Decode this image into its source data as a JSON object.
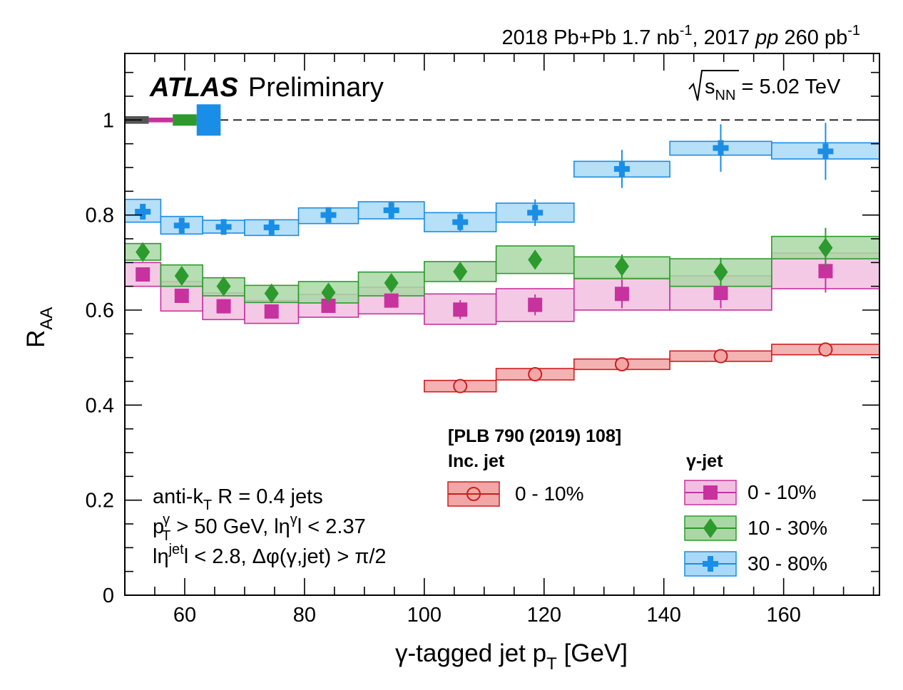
{
  "header": {
    "lumi_prefix": "2018 Pb+Pb 1.7 nb",
    "lumi_sup1": "-1",
    "lumi_mid": ", 2017 ",
    "lumi_pp": "pp",
    "lumi_mid2": " 260 pb",
    "lumi_sup2": "-1"
  },
  "atlas": {
    "brand": "ATLAS",
    "status": "Preliminary"
  },
  "energy": {
    "s": "s",
    "sub": "NN",
    "value": " = 5.02 TeV"
  },
  "selection": {
    "line1": {
      "a": "anti-k",
      "sub": "T",
      "b": " R = 0.4 jets"
    },
    "line2": {
      "a": "p",
      "sup": "γ",
      "sub": "T",
      "b": " > 50 GeV, lη",
      "sup2": "γ",
      "c": "l < 2.37"
    },
    "line3": {
      "a": "lη",
      "sup": "jet",
      "b": "l < 2.8, Δφ(γ,jet) > π/2"
    }
  },
  "legend": {
    "reference": "[PLB 790 (2019) 108]",
    "inc_heading": "Inc. jet",
    "gamma_heading": "γ-jet",
    "inc_label": "0 - 10%",
    "c0_label": "0 - 10%",
    "c1_label": "10 - 30%",
    "c2_label": "30 - 80%"
  },
  "chart_data": {
    "type": "scatter",
    "xlabel": "γ-tagged jet p",
    "xlabel_sub": "T",
    "xlabel_unit": " [GeV]",
    "ylabel": "R",
    "ylabel_sub": "AA",
    "xlim": [
      50,
      176
    ],
    "ylim": [
      0,
      1.14
    ],
    "xticks": [
      "60",
      "80",
      "100",
      "120",
      "140",
      "160"
    ],
    "yticks": [
      "0",
      "0.2",
      "0.4",
      "0.6",
      "0.8",
      "1"
    ],
    "reference_line": 1.0,
    "colors": {
      "incl": "#cc1f1f",
      "incl_fill": "#f2a6a6",
      "c0": "#c8329e",
      "c0_fill": "#f2bfe2",
      "c1": "#2d9a2d",
      "c1_fill": "#a9d8a5",
      "c2": "#1a8ee6",
      "c2_fill": "#a9d9f7"
    },
    "norm_boxes": [
      {
        "series": "incl",
        "x0": 50,
        "x1": 54,
        "lo": 0.992,
        "hi": 1.008
      },
      {
        "series": "c0",
        "x0": 54,
        "x1": 58,
        "lo": 0.995,
        "hi": 1.005
      },
      {
        "series": "c1",
        "x0": 58,
        "x1": 62,
        "lo": 0.988,
        "hi": 1.012
      },
      {
        "series": "c2",
        "x0": 62,
        "x1": 66,
        "lo": 0.967,
        "hi": 1.033
      }
    ],
    "series": [
      {
        "key": "c0",
        "name": "γ-jet 0 - 10%",
        "marker": "square",
        "points": [
          {
            "x": 53,
            "y": 0.675,
            "xlo": 50,
            "xhi": 56,
            "slo": 0.65,
            "shi": 0.7,
            "elo": 0.015,
            "ehi": 0.015
          },
          {
            "x": 59.5,
            "y": 0.63,
            "xlo": 56,
            "xhi": 63,
            "slo": 0.598,
            "shi": 0.66,
            "elo": 0.015,
            "ehi": 0.015
          },
          {
            "x": 66.5,
            "y": 0.608,
            "xlo": 63,
            "xhi": 70,
            "slo": 0.58,
            "shi": 0.636,
            "elo": 0.015,
            "ehi": 0.015
          },
          {
            "x": 74.5,
            "y": 0.597,
            "xlo": 70,
            "xhi": 79,
            "slo": 0.572,
            "shi": 0.62,
            "elo": 0.015,
            "ehi": 0.015
          },
          {
            "x": 84,
            "y": 0.609,
            "xlo": 79,
            "xhi": 89,
            "slo": 0.585,
            "shi": 0.633,
            "elo": 0.015,
            "ehi": 0.015
          },
          {
            "x": 94.5,
            "y": 0.62,
            "xlo": 89,
            "xhi": 100,
            "slo": 0.592,
            "shi": 0.648,
            "elo": 0.015,
            "ehi": 0.015
          },
          {
            "x": 106,
            "y": 0.601,
            "xlo": 100,
            "xhi": 112,
            "slo": 0.57,
            "shi": 0.634,
            "elo": 0.02,
            "ehi": 0.02
          },
          {
            "x": 118.5,
            "y": 0.611,
            "xlo": 112,
            "xhi": 125,
            "slo": 0.576,
            "shi": 0.645,
            "elo": 0.022,
            "ehi": 0.022
          },
          {
            "x": 133,
            "y": 0.634,
            "xlo": 125,
            "xhi": 141,
            "slo": 0.6,
            "shi": 0.668,
            "elo": 0.03,
            "ehi": 0.03
          },
          {
            "x": 149.5,
            "y": 0.636,
            "xlo": 141,
            "xhi": 158,
            "slo": 0.6,
            "shi": 0.672,
            "elo": 0.032,
            "ehi": 0.032
          },
          {
            "x": 167,
            "y": 0.682,
            "xlo": 158,
            "xhi": 176,
            "slo": 0.645,
            "shi": 0.72,
            "elo": 0.045,
            "ehi": 0.045
          }
        ]
      },
      {
        "key": "c1",
        "name": "γ-jet 10 - 30%",
        "marker": "diamond",
        "points": [
          {
            "x": 53,
            "y": 0.722,
            "xlo": 50,
            "xhi": 56,
            "slo": 0.705,
            "shi": 0.74,
            "elo": 0.015,
            "ehi": 0.015
          },
          {
            "x": 59.5,
            "y": 0.672,
            "xlo": 56,
            "xhi": 63,
            "slo": 0.65,
            "shi": 0.695,
            "elo": 0.015,
            "ehi": 0.015
          },
          {
            "x": 66.5,
            "y": 0.65,
            "xlo": 63,
            "xhi": 70,
            "slo": 0.63,
            "shi": 0.668,
            "elo": 0.015,
            "ehi": 0.015
          },
          {
            "x": 74.5,
            "y": 0.635,
            "xlo": 70,
            "xhi": 79,
            "slo": 0.616,
            "shi": 0.652,
            "elo": 0.015,
            "ehi": 0.015
          },
          {
            "x": 84,
            "y": 0.637,
            "xlo": 79,
            "xhi": 89,
            "slo": 0.615,
            "shi": 0.66,
            "elo": 0.015,
            "ehi": 0.015
          },
          {
            "x": 94.5,
            "y": 0.657,
            "xlo": 89,
            "xhi": 100,
            "slo": 0.63,
            "shi": 0.68,
            "elo": 0.015,
            "ehi": 0.015
          },
          {
            "x": 106,
            "y": 0.681,
            "xlo": 100,
            "xhi": 112,
            "slo": 0.66,
            "shi": 0.702,
            "elo": 0.015,
            "ehi": 0.015
          },
          {
            "x": 118.5,
            "y": 0.706,
            "xlo": 112,
            "xhi": 125,
            "slo": 0.677,
            "shi": 0.735,
            "elo": 0.02,
            "ehi": 0.02
          },
          {
            "x": 133,
            "y": 0.692,
            "xlo": 125,
            "xhi": 141,
            "slo": 0.666,
            "shi": 0.712,
            "elo": 0.025,
            "ehi": 0.025
          },
          {
            "x": 149.5,
            "y": 0.68,
            "xlo": 141,
            "xhi": 158,
            "slo": 0.65,
            "shi": 0.708,
            "elo": 0.03,
            "ehi": 0.03
          },
          {
            "x": 167,
            "y": 0.731,
            "xlo": 158,
            "xhi": 176,
            "slo": 0.708,
            "shi": 0.755,
            "elo": 0.042,
            "ehi": 0.042
          }
        ]
      },
      {
        "key": "c2",
        "name": "γ-jet 30 - 80%",
        "marker": "cross",
        "points": [
          {
            "x": 53,
            "y": 0.807,
            "xlo": 50,
            "xhi": 56,
            "slo": 0.785,
            "shi": 0.833,
            "elo": 0.015,
            "ehi": 0.015
          },
          {
            "x": 59.5,
            "y": 0.778,
            "xlo": 56,
            "xhi": 63,
            "slo": 0.76,
            "shi": 0.797,
            "elo": 0.015,
            "ehi": 0.015
          },
          {
            "x": 66.5,
            "y": 0.775,
            "xlo": 63,
            "xhi": 70,
            "slo": 0.762,
            "shi": 0.789,
            "elo": 0.012,
            "ehi": 0.012
          },
          {
            "x": 74.5,
            "y": 0.774,
            "xlo": 70,
            "xhi": 79,
            "slo": 0.757,
            "shi": 0.79,
            "elo": 0.015,
            "ehi": 0.015
          },
          {
            "x": 84,
            "y": 0.8,
            "xlo": 79,
            "xhi": 89,
            "slo": 0.782,
            "shi": 0.815,
            "elo": 0.015,
            "ehi": 0.015
          },
          {
            "x": 94.5,
            "y": 0.81,
            "xlo": 89,
            "xhi": 100,
            "slo": 0.792,
            "shi": 0.828,
            "elo": 0.018,
            "ehi": 0.018
          },
          {
            "x": 106,
            "y": 0.785,
            "xlo": 100,
            "xhi": 112,
            "slo": 0.765,
            "shi": 0.805,
            "elo": 0.02,
            "ehi": 0.02
          },
          {
            "x": 118.5,
            "y": 0.805,
            "xlo": 112,
            "xhi": 125,
            "slo": 0.785,
            "shi": 0.825,
            "elo": 0.028,
            "ehi": 0.028
          },
          {
            "x": 133,
            "y": 0.897,
            "xlo": 125,
            "xhi": 141,
            "slo": 0.88,
            "shi": 0.913,
            "elo": 0.04,
            "ehi": 0.04
          },
          {
            "x": 149.5,
            "y": 0.941,
            "xlo": 141,
            "xhi": 158,
            "slo": 0.926,
            "shi": 0.955,
            "elo": 0.05,
            "ehi": 0.05
          },
          {
            "x": 167,
            "y": 0.934,
            "xlo": 158,
            "xhi": 176,
            "slo": 0.918,
            "shi": 0.952,
            "elo": 0.06,
            "ehi": 0.06
          }
        ]
      },
      {
        "key": "incl",
        "name": "Inc. jet 0 - 10%",
        "marker": "open-circle",
        "points": [
          {
            "x": 106,
            "y": 0.44,
            "xlo": 100,
            "xhi": 112,
            "slo": 0.428,
            "shi": 0.452,
            "elo": 0.004,
            "ehi": 0.004
          },
          {
            "x": 118.5,
            "y": 0.465,
            "xlo": 112,
            "xhi": 125,
            "slo": 0.453,
            "shi": 0.477,
            "elo": 0.004,
            "ehi": 0.004
          },
          {
            "x": 133,
            "y": 0.486,
            "xlo": 125,
            "xhi": 141,
            "slo": 0.475,
            "shi": 0.497,
            "elo": 0.004,
            "ehi": 0.004
          },
          {
            "x": 149.5,
            "y": 0.503,
            "xlo": 141,
            "xhi": 158,
            "slo": 0.492,
            "shi": 0.514,
            "elo": 0.004,
            "ehi": 0.004
          },
          {
            "x": 167,
            "y": 0.517,
            "xlo": 158,
            "xhi": 176,
            "slo": 0.506,
            "shi": 0.528,
            "elo": 0.004,
            "ehi": 0.004
          }
        ]
      }
    ]
  }
}
